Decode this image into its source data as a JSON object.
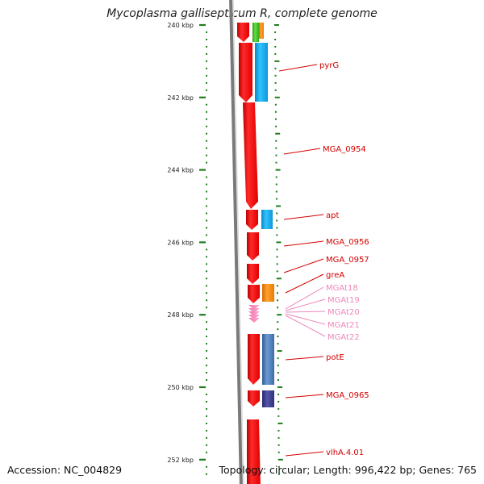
{
  "title": "Mycoplasma gallisepticum R, complete genome",
  "footer": {
    "accession": "Accession: NC_004829",
    "topology": "Topology: circular; Length: 996,422 bp; Genes: 765"
  },
  "colors": {
    "tick": "#1e7d1e",
    "backbone": "#808080",
    "gene_red": "#ff0000",
    "label_red": "#d40000",
    "label_pink": "#ee88bb",
    "orange": "#ff8800",
    "cyan": "#1ea8f0",
    "steelblue": "#4a78b0",
    "navy": "#3b3b8a",
    "green": "#3dbb1f"
  },
  "axis": {
    "unit": "kbp",
    "ticks": [
      {
        "kbp": 240,
        "label": "240 kbp"
      },
      {
        "kbp": 242,
        "label": "242 kbp"
      },
      {
        "kbp": 244,
        "label": "244 kbp"
      },
      {
        "kbp": 246,
        "label": "246 kbp"
      },
      {
        "kbp": 248,
        "label": "248 kbp"
      },
      {
        "kbp": 250,
        "label": "250 kbp"
      },
      {
        "kbp": 252,
        "label": "252 kbp"
      }
    ]
  },
  "gene_labels": [
    {
      "text": "pyrG",
      "color": "red"
    },
    {
      "text": "MGA_0954",
      "color": "red"
    },
    {
      "text": "apt",
      "color": "red"
    },
    {
      "text": "MGA_0956",
      "color": "red"
    },
    {
      "text": "MGA_0957",
      "color": "red"
    },
    {
      "text": "greA",
      "color": "red"
    },
    {
      "text": "MGAt18",
      "color": "pink"
    },
    {
      "text": "MGAt19",
      "color": "pink"
    },
    {
      "text": "MGAt20",
      "color": "pink"
    },
    {
      "text": "MGAt21",
      "color": "pink"
    },
    {
      "text": "MGAt22",
      "color": "pink"
    },
    {
      "text": "potE",
      "color": "red"
    },
    {
      "text": "MGA_0965",
      "color": "red"
    },
    {
      "text": "vlhA.4.01",
      "color": "red"
    }
  ]
}
